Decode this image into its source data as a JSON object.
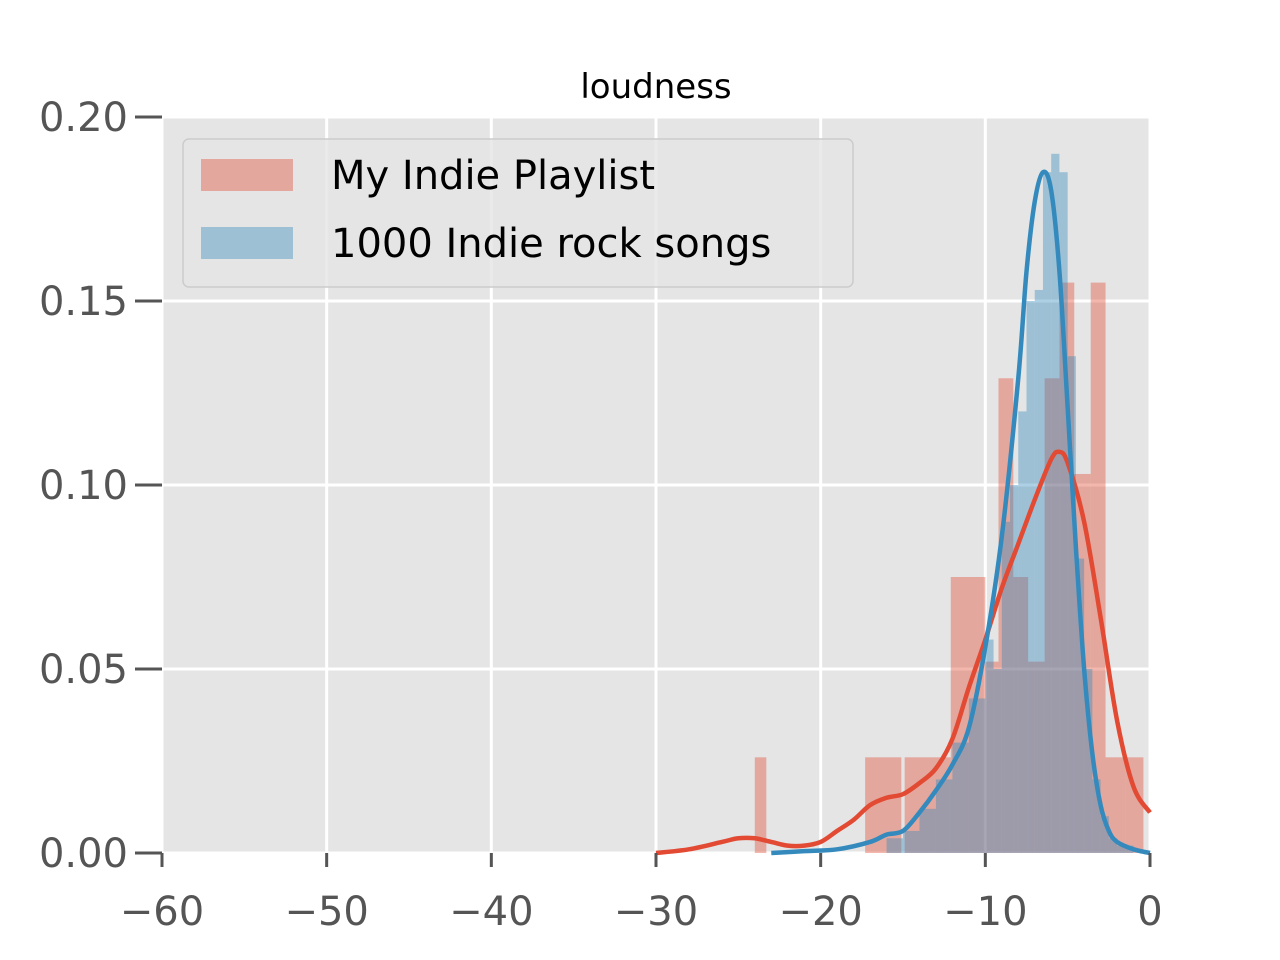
{
  "chart_data": {
    "type": "histogram+kde",
    "title": "loudness",
    "xlabel": "",
    "ylabel": "",
    "xlim": [
      -60,
      0
    ],
    "ylim": [
      0,
      0.2
    ],
    "x_ticks": [
      -60,
      -50,
      -40,
      -30,
      -20,
      -10,
      0
    ],
    "x_tick_labels": [
      "−60",
      "−50",
      "−40",
      "−30",
      "−20",
      "−10",
      "0"
    ],
    "y_ticks": [
      0.0,
      0.05,
      0.1,
      0.15,
      0.2
    ],
    "y_tick_labels": [
      "0.00",
      "0.05",
      "0.10",
      "0.15",
      "0.20"
    ],
    "grid": true,
    "legend_position": "top-left",
    "series": [
      {
        "name": "My Indie Playlist",
        "color": "#E24A33",
        "hist_bins": [
          [
            -24.0,
            -23.3,
            0.026
          ],
          [
            -17.3,
            -15.1,
            0.026
          ],
          [
            -14.9,
            -12.1,
            0.026
          ],
          [
            -12.1,
            -10.0,
            0.075
          ],
          [
            -10.0,
            -9.2,
            0.052
          ],
          [
            -9.2,
            -8.3,
            0.129
          ],
          [
            -8.3,
            -7.4,
            0.075
          ],
          [
            -7.4,
            -6.4,
            0.052
          ],
          [
            -6.4,
            -5.5,
            0.129
          ],
          [
            -5.5,
            -4.6,
            0.155
          ],
          [
            -4.6,
            -3.6,
            0.103
          ],
          [
            -3.6,
            -2.7,
            0.155
          ],
          [
            -2.7,
            -1.5,
            0.026
          ],
          [
            -1.5,
            -0.4,
            0.026
          ]
        ],
        "kde": {
          "x": [
            -30,
            -28,
            -26,
            -25,
            -24,
            -23,
            -22,
            -21,
            -20,
            -19,
            -18,
            -17,
            -16,
            -15,
            -14,
            -13,
            -12,
            -11,
            -10,
            -9,
            -8,
            -7,
            -6,
            -5.5,
            -5,
            -4,
            -3,
            -2,
            -1,
            0
          ],
          "y": [
            0.0,
            0.001,
            0.003,
            0.004,
            0.004,
            0.003,
            0.002,
            0.002,
            0.003,
            0.006,
            0.009,
            0.013,
            0.015,
            0.016,
            0.019,
            0.023,
            0.031,
            0.045,
            0.058,
            0.072,
            0.084,
            0.096,
            0.107,
            0.109,
            0.106,
            0.09,
            0.064,
            0.036,
            0.018,
            0.011
          ]
        }
      },
      {
        "name": "1000 Indie rock songs",
        "color": "#348ABD",
        "hist_bins": [
          [
            -16.0,
            -15.0,
            0.004
          ],
          [
            -15.0,
            -14.0,
            0.006
          ],
          [
            -14.0,
            -13.0,
            0.012
          ],
          [
            -13.0,
            -12.0,
            0.02
          ],
          [
            -12.0,
            -11.0,
            0.03
          ],
          [
            -11.0,
            -10.0,
            0.042
          ],
          [
            -10.0,
            -9.5,
            0.058
          ],
          [
            -9.5,
            -9.0,
            0.05
          ],
          [
            -9.0,
            -8.5,
            0.09
          ],
          [
            -8.5,
            -8.0,
            0.1
          ],
          [
            -8.0,
            -7.5,
            0.12
          ],
          [
            -7.5,
            -7.0,
            0.15
          ],
          [
            -7.0,
            -6.5,
            0.153
          ],
          [
            -6.5,
            -6.0,
            0.185
          ],
          [
            -6.0,
            -5.5,
            0.19
          ],
          [
            -5.5,
            -5.0,
            0.185
          ],
          [
            -5.0,
            -4.5,
            0.135
          ],
          [
            -4.5,
            -4.0,
            0.08
          ],
          [
            -4.0,
            -3.5,
            0.05
          ],
          [
            -3.5,
            -3.0,
            0.02
          ],
          [
            -3.0,
            -2.5,
            0.01
          ],
          [
            -2.5,
            -2.0,
            0.004
          ],
          [
            -2.0,
            -1.0,
            0.002
          ]
        ],
        "kde": {
          "x": [
            -23,
            -21,
            -19,
            -17,
            -16,
            -15,
            -14,
            -13,
            -12,
            -11,
            -10,
            -9,
            -8,
            -7.5,
            -7,
            -6.5,
            -6,
            -5.5,
            -5,
            -4.5,
            -4,
            -3.5,
            -3,
            -2.5,
            -2,
            -1,
            0
          ],
          "y": [
            0.0,
            0.0005,
            0.001,
            0.003,
            0.005,
            0.006,
            0.011,
            0.017,
            0.024,
            0.034,
            0.056,
            0.086,
            0.129,
            0.158,
            0.177,
            0.185,
            0.18,
            0.158,
            0.121,
            0.083,
            0.05,
            0.027,
            0.013,
            0.006,
            0.003,
            0.001,
            0.0
          ]
        }
      }
    ]
  }
}
